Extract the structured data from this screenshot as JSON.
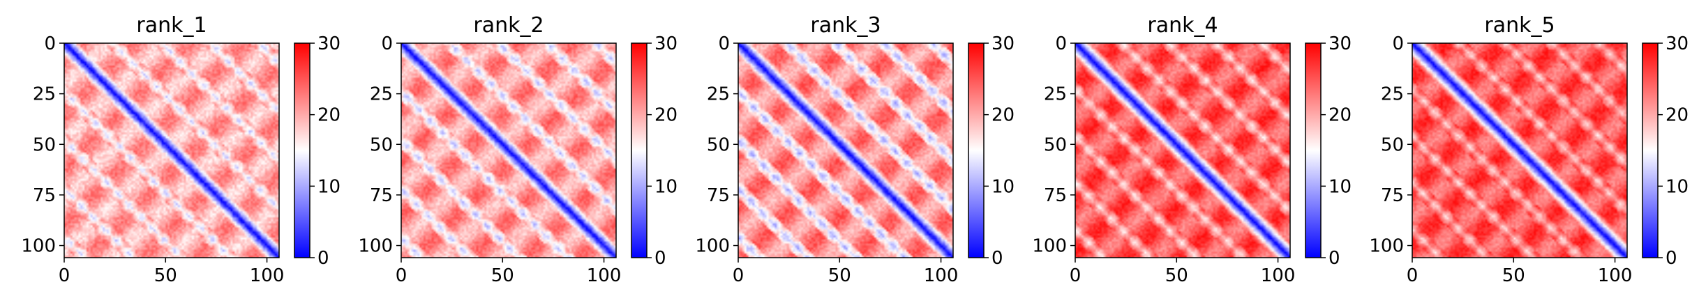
{
  "chart_data": [
    {
      "type": "heatmap",
      "title": "rank_1",
      "n": 106,
      "xlim": [
        0,
        106
      ],
      "ylim": [
        106,
        0
      ],
      "xticks": [
        0,
        50,
        100
      ],
      "yticks": [
        0,
        25,
        50,
        75,
        100
      ],
      "colorbar": {
        "range": [
          0,
          30
        ],
        "ticks": [
          0,
          10,
          20,
          30
        ],
        "colors": [
          "#0000ff",
          "#ffffff",
          "#ff0000"
        ]
      },
      "pattern": {
        "diagonal_value": 0,
        "band_period": 24,
        "background_value": 20,
        "stripe_value": 12,
        "texture": 2.0
      }
    },
    {
      "type": "heatmap",
      "title": "rank_2",
      "n": 106,
      "xlim": [
        0,
        106
      ],
      "ylim": [
        106,
        0
      ],
      "xticks": [
        0,
        50,
        100
      ],
      "yticks": [
        0,
        25,
        50,
        75,
        100
      ],
      "colorbar": {
        "range": [
          0,
          30
        ],
        "ticks": [
          0,
          10,
          20,
          30
        ],
        "colors": [
          "#0000ff",
          "#ffffff",
          "#ff0000"
        ]
      },
      "pattern": {
        "diagonal_value": 0,
        "band_period": 24,
        "background_value": 21,
        "stripe_value": 11,
        "texture": 1.8
      }
    },
    {
      "type": "heatmap",
      "title": "rank_3",
      "n": 106,
      "xlim": [
        0,
        106
      ],
      "ylim": [
        106,
        0
      ],
      "xticks": [
        0,
        50,
        100
      ],
      "yticks": [
        0,
        25,
        50,
        75,
        100
      ],
      "colorbar": {
        "range": [
          0,
          30
        ],
        "ticks": [
          0,
          10,
          20,
          30
        ],
        "colors": [
          "#0000ff",
          "#ffffff",
          "#ff0000"
        ]
      },
      "pattern": {
        "diagonal_value": 0,
        "band_period": 24,
        "background_value": 22,
        "stripe_value": 10,
        "texture": 1.8
      }
    },
    {
      "type": "heatmap",
      "title": "rank_4",
      "n": 106,
      "xlim": [
        0,
        106
      ],
      "ylim": [
        106,
        0
      ],
      "xticks": [
        0,
        50,
        100
      ],
      "yticks": [
        0,
        25,
        50,
        75,
        100
      ],
      "colorbar": {
        "range": [
          0,
          30
        ],
        "ticks": [
          0,
          10,
          20,
          30
        ],
        "colors": [
          "#0000ff",
          "#ffffff",
          "#ff0000"
        ]
      },
      "pattern": {
        "diagonal_value": 0,
        "band_period": 23,
        "background_value": 25,
        "stripe_value": 16,
        "texture": 1.5
      }
    },
    {
      "type": "heatmap",
      "title": "rank_5",
      "n": 106,
      "xlim": [
        0,
        106
      ],
      "ylim": [
        106,
        0
      ],
      "xticks": [
        0,
        50,
        100
      ],
      "yticks": [
        0,
        25,
        50,
        75,
        100
      ],
      "colorbar": {
        "range": [
          0,
          30
        ],
        "ticks": [
          0,
          10,
          20,
          30
        ],
        "colors": [
          "#0000ff",
          "#ffffff",
          "#ff0000"
        ]
      },
      "pattern": {
        "diagonal_value": 0,
        "band_period": 23,
        "background_value": 25,
        "stripe_value": 17,
        "texture": 1.5
      }
    }
  ]
}
